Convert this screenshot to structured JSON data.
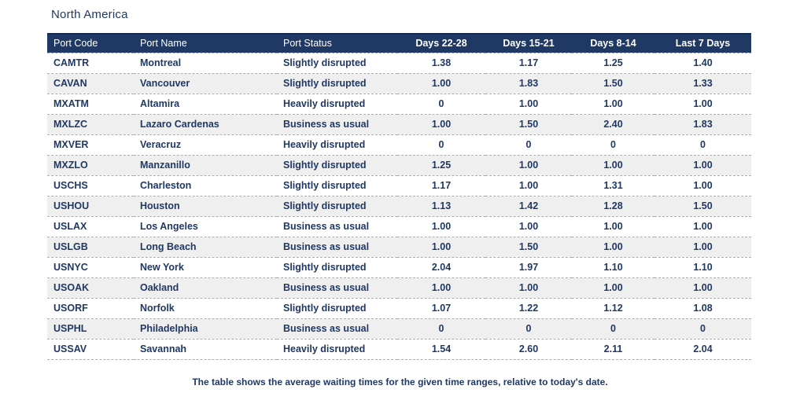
{
  "title": "North America",
  "footnote": "The table shows the average waiting times for the given time ranges, relative to today's date.",
  "colors": {
    "header_bg": "#1F3864",
    "header_text": "#FFFFFF",
    "body_text": "#1F3864",
    "stripe_bg": "#EFEFEF",
    "divider": "#ADADAD"
  },
  "chart_data": {
    "type": "table",
    "title": "North America",
    "columns": [
      "Port Code",
      "Port Name",
      "Port Status",
      "Days 22-28",
      "Days 15-21",
      "Days 8-14",
      "Last 7 Days"
    ],
    "rows": [
      [
        "CAMTR",
        "Montreal",
        "Slightly disrupted",
        "1.38",
        "1.17",
        "1.25",
        "1.40"
      ],
      [
        "CAVAN",
        "Vancouver",
        "Slightly disrupted",
        "1.00",
        "1.83",
        "1.50",
        "1.33"
      ],
      [
        "MXATM",
        "Altamira",
        "Heavily disrupted",
        "0",
        "1.00",
        "1.00",
        "1.00"
      ],
      [
        "MXLZC",
        "Lazaro Cardenas",
        "Business as usual",
        "1.00",
        "1.50",
        "2.40",
        "1.83"
      ],
      [
        "MXVER",
        "Veracruz",
        "Heavily disrupted",
        "0",
        "0",
        "0",
        "0"
      ],
      [
        "MXZLO",
        "Manzanillo",
        "Slightly disrupted",
        "1.25",
        "1.00",
        "1.00",
        "1.00"
      ],
      [
        "USCHS",
        "Charleston",
        "Slightly disrupted",
        "1.17",
        "1.00",
        "1.31",
        "1.00"
      ],
      [
        "USHOU",
        "Houston",
        "Slightly disrupted",
        "1.13",
        "1.42",
        "1.28",
        "1.50"
      ],
      [
        "USLAX",
        "Los Angeles",
        "Business as usual",
        "1.00",
        "1.00",
        "1.00",
        "1.00"
      ],
      [
        "USLGB",
        "Long Beach",
        "Business as usual",
        "1.00",
        "1.50",
        "1.00",
        "1.00"
      ],
      [
        "USNYC",
        "New York",
        "Slightly disrupted",
        "2.04",
        "1.97",
        "1.10",
        "1.10"
      ],
      [
        "USOAK",
        "Oakland",
        "Business as usual",
        "1.00",
        "1.00",
        "1.00",
        "1.00"
      ],
      [
        "USORF",
        "Norfolk",
        "Slightly disrupted",
        "1.07",
        "1.22",
        "1.12",
        "1.08"
      ],
      [
        "USPHL",
        "Philadelphia",
        "Business as usual",
        "0",
        "0",
        "0",
        "0"
      ],
      [
        "USSAV",
        "Savannah",
        "Heavily disrupted",
        "1.54",
        "2.60",
        "2.11",
        "2.04"
      ]
    ]
  }
}
